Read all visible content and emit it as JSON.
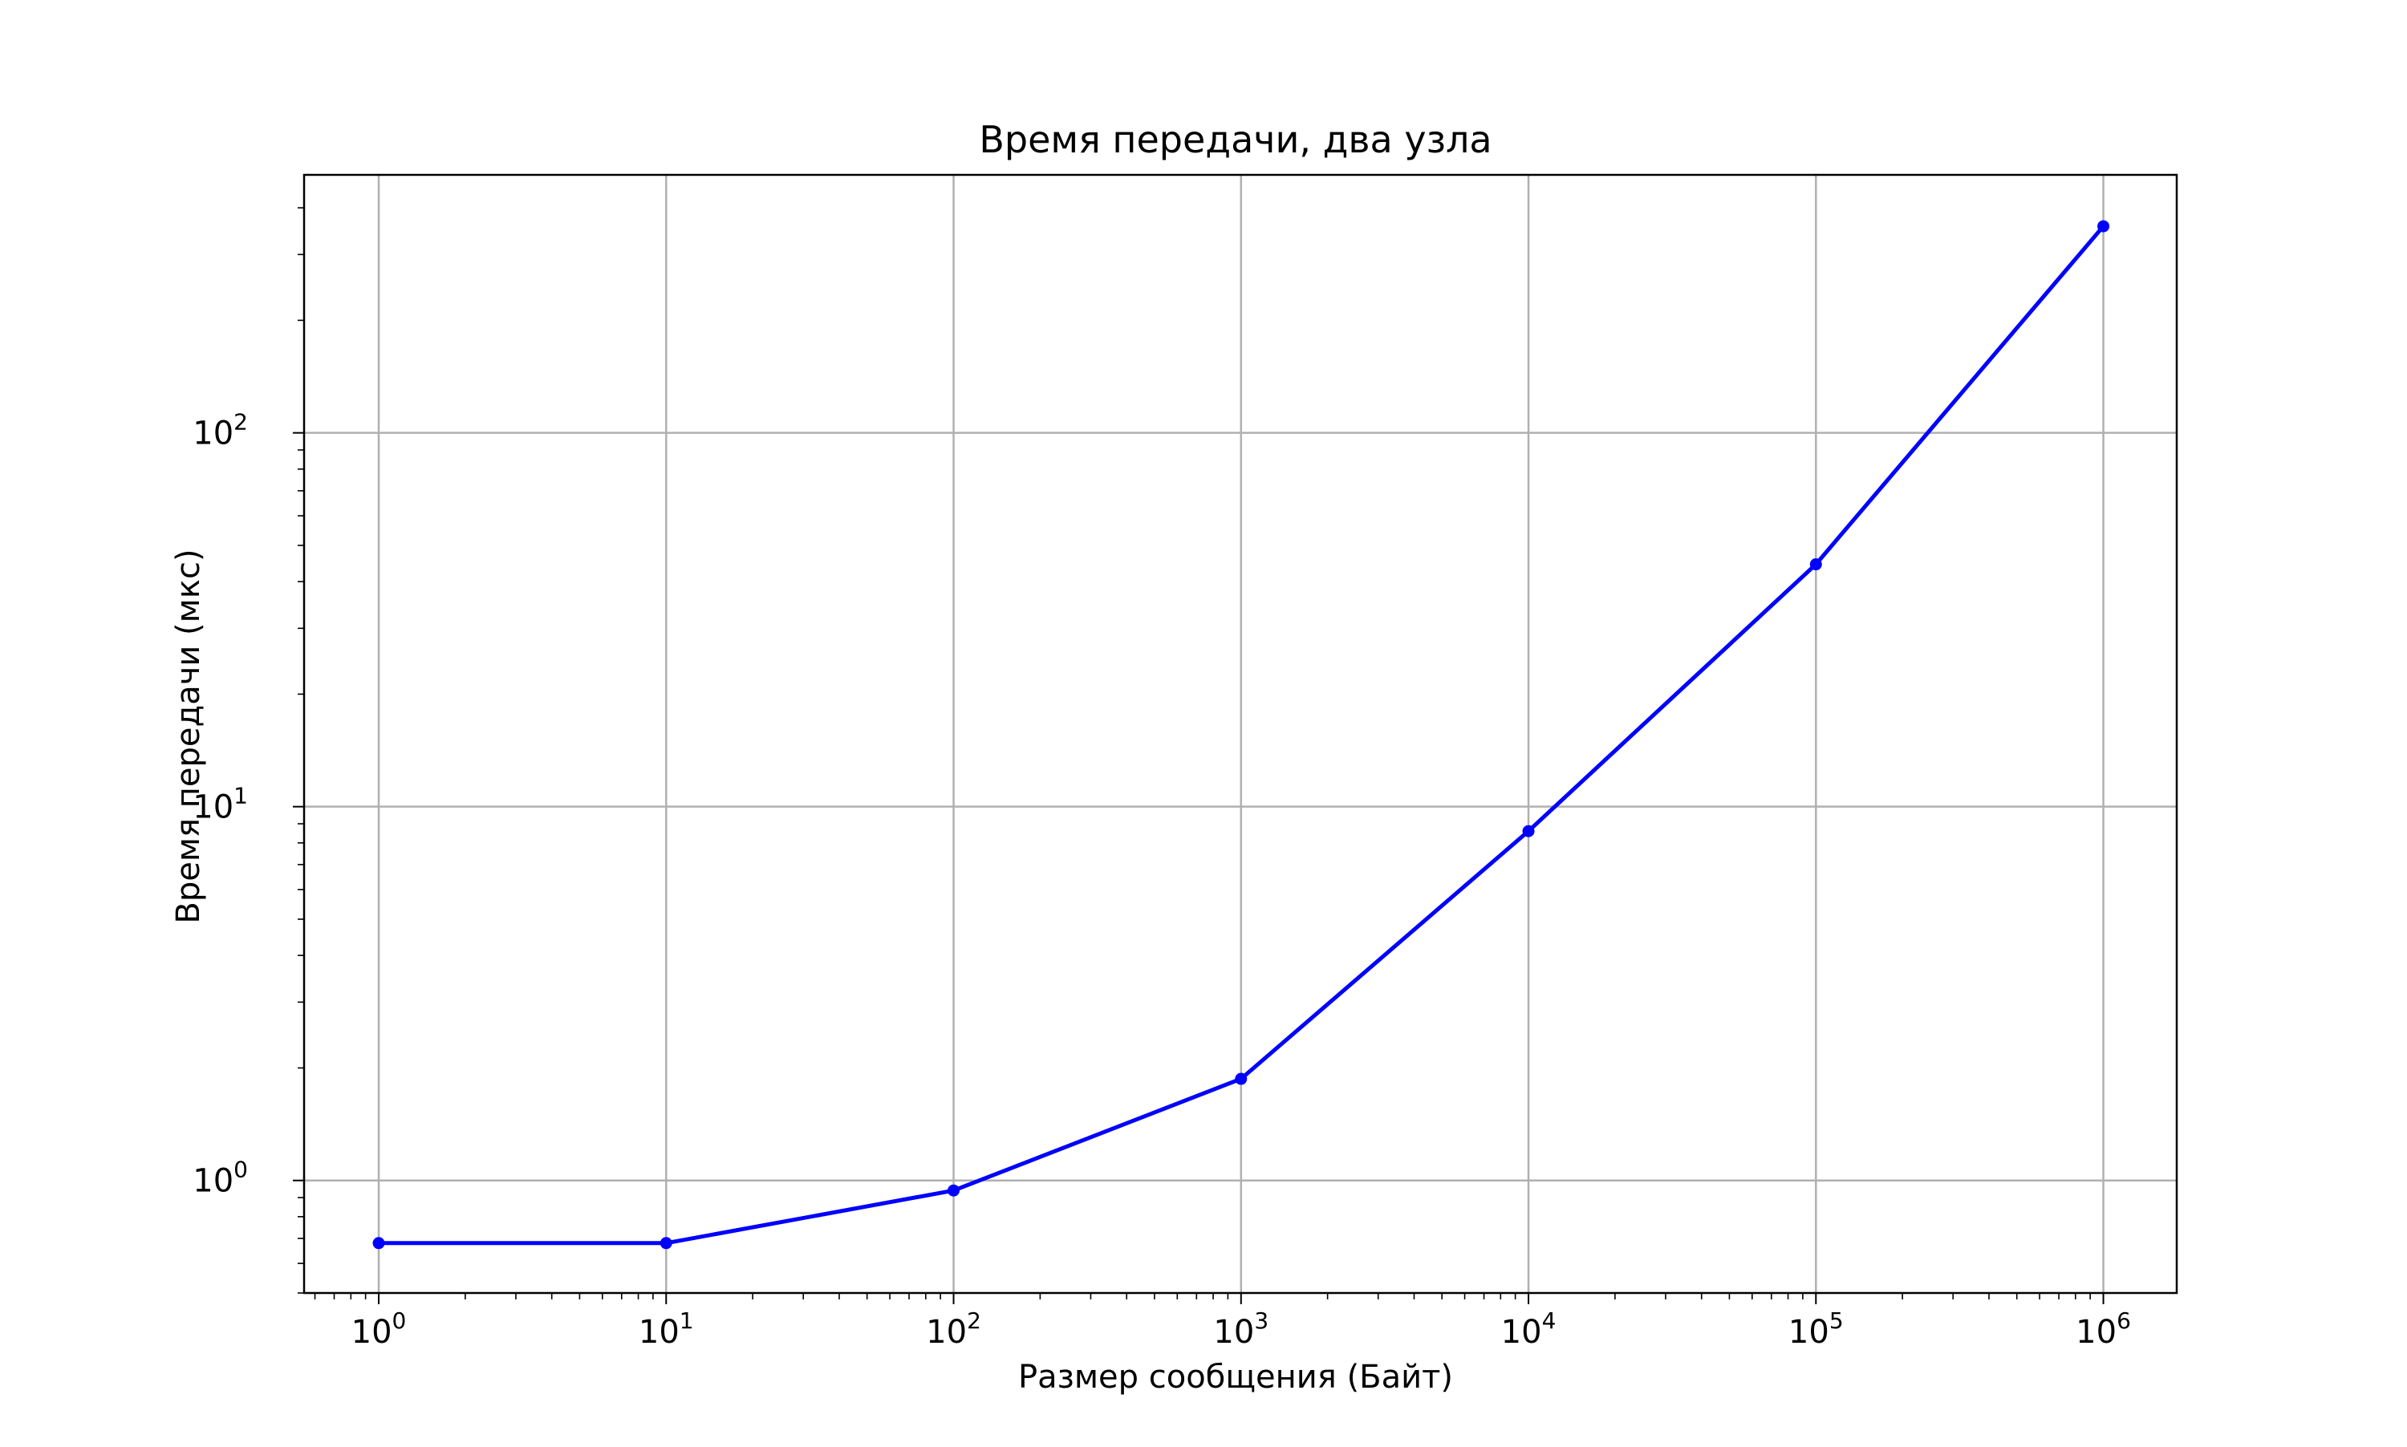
{
  "chart_data": {
    "type": "line",
    "title": "Время передачи, два узла",
    "xlabel": "Размер сообщения (Байт)",
    "ylabel": "Время передачи (мкс)",
    "xscale": "log",
    "yscale": "log",
    "xlim": [
      0.55,
      1800000
    ],
    "ylim": [
      0.5,
      490
    ],
    "grid": true,
    "xticks": [
      {
        "value": 1,
        "base": "10",
        "exp": "0"
      },
      {
        "value": 10,
        "base": "10",
        "exp": "1"
      },
      {
        "value": 100,
        "base": "10",
        "exp": "2"
      },
      {
        "value": 1000,
        "base": "10",
        "exp": "3"
      },
      {
        "value": 10000,
        "base": "10",
        "exp": "4"
      },
      {
        "value": 100000,
        "base": "10",
        "exp": "5"
      },
      {
        "value": 1000000,
        "base": "10",
        "exp": "6"
      }
    ],
    "yticks": [
      {
        "value": 1,
        "base": "10",
        "exp": "0"
      },
      {
        "value": 10,
        "base": "10",
        "exp": "1"
      },
      {
        "value": 100,
        "base": "10",
        "exp": "2"
      }
    ],
    "series": [
      {
        "color": "#0000ff",
        "x": [
          1,
          10,
          100,
          1000,
          10000,
          100000,
          1000000
        ],
        "y": [
          0.68,
          0.68,
          0.94,
          1.87,
          8.6,
          44.5,
          357
        ]
      }
    ]
  }
}
